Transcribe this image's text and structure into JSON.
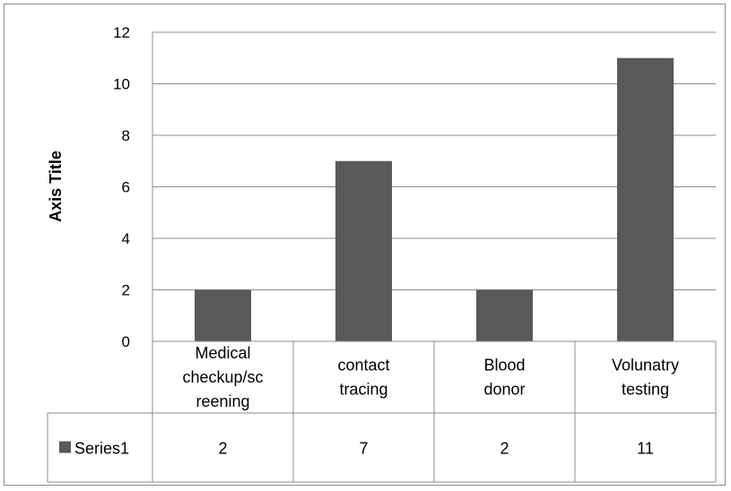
{
  "chart_data": {
    "type": "bar",
    "ylabel": "Axis Title",
    "ylim": [
      0,
      12
    ],
    "yticks": [
      0,
      2,
      4,
      6,
      8,
      10,
      12
    ],
    "grid": true,
    "data_table": true,
    "categories": [
      [
        "Medical",
        "checkup/sc",
        "reening"
      ],
      [
        "contact",
        "tracing"
      ],
      [
        "Blood",
        "donor"
      ],
      [
        "Volunatry",
        "testing"
      ]
    ],
    "series": [
      {
        "name": "Series1",
        "color": "#595959",
        "values": [
          2,
          7,
          2,
          11
        ]
      }
    ]
  }
}
